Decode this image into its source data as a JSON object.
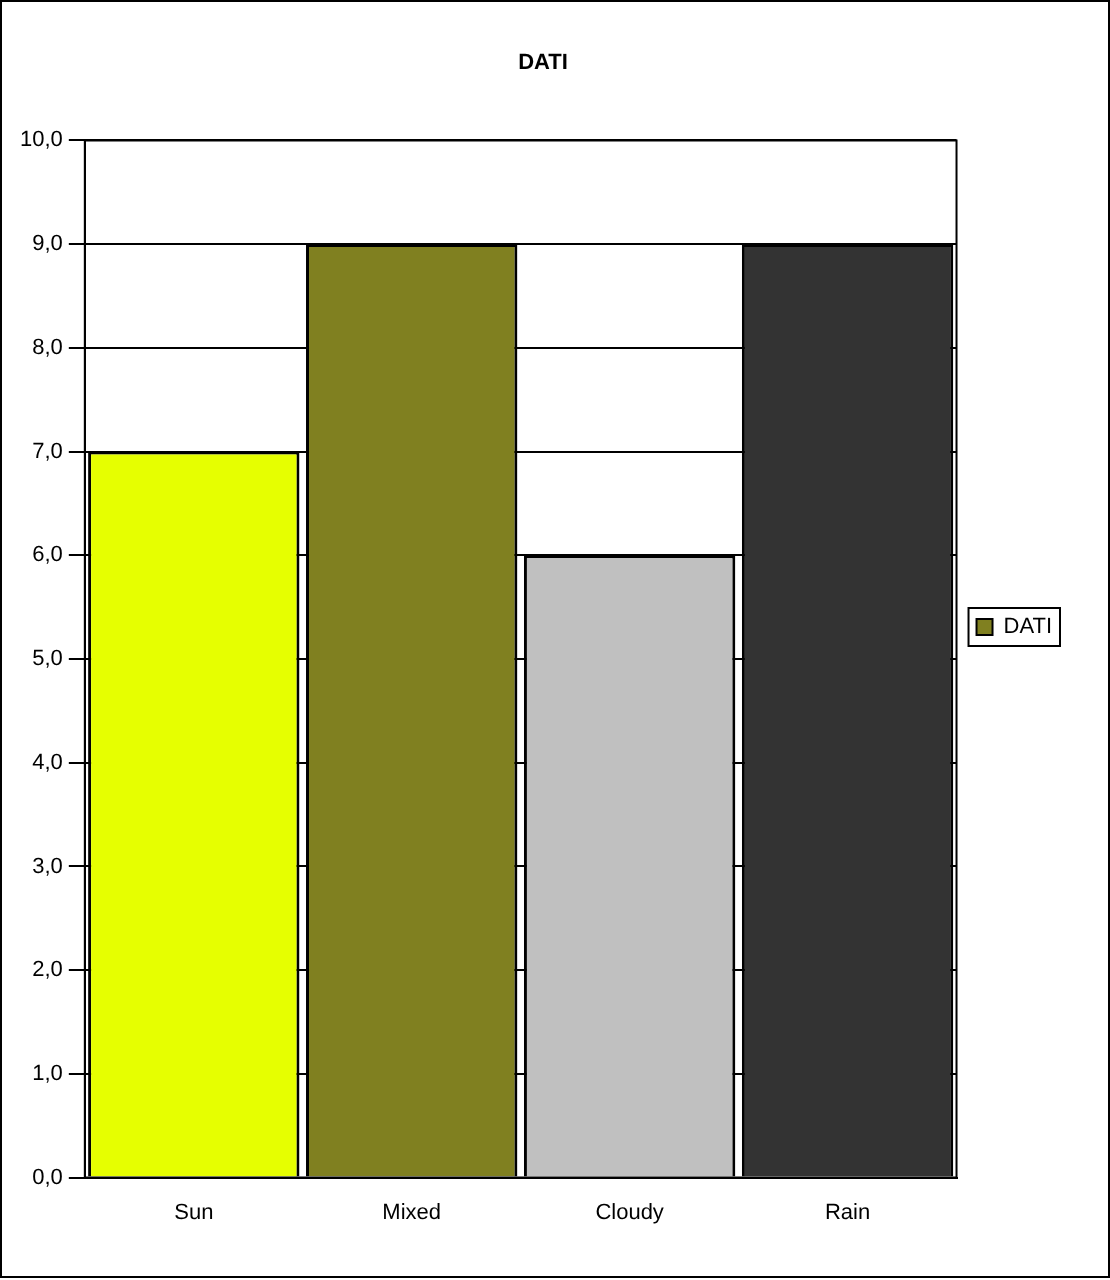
{
  "chart_data": {
    "type": "bar",
    "title": "DATI",
    "categories": [
      "Sun",
      "Mixed",
      "Cloudy",
      "Rain"
    ],
    "series": [
      {
        "name": "DATI",
        "color": "#808020",
        "colors": [
          "#e6ff00",
          "#808020",
          "#c0c0c0",
          "#333333"
        ],
        "values": [
          7,
          9,
          6,
          9
        ]
      }
    ],
    "ylim": [
      0,
      10
    ],
    "yticks": [
      {
        "value": 0,
        "label": "0,0"
      },
      {
        "value": 1,
        "label": "1,0"
      },
      {
        "value": 2,
        "label": "2,0"
      },
      {
        "value": 3,
        "label": "3,0"
      },
      {
        "value": 4,
        "label": "4,0"
      },
      {
        "value": 5,
        "label": "5,0"
      },
      {
        "value": 6,
        "label": "6,0"
      },
      {
        "value": 7,
        "label": "7,0"
      },
      {
        "value": 8,
        "label": "8,0"
      },
      {
        "value": 9,
        "label": "9,0"
      },
      {
        "value": 10,
        "label": "10,0"
      }
    ],
    "grid": "y",
    "legend": "right"
  }
}
